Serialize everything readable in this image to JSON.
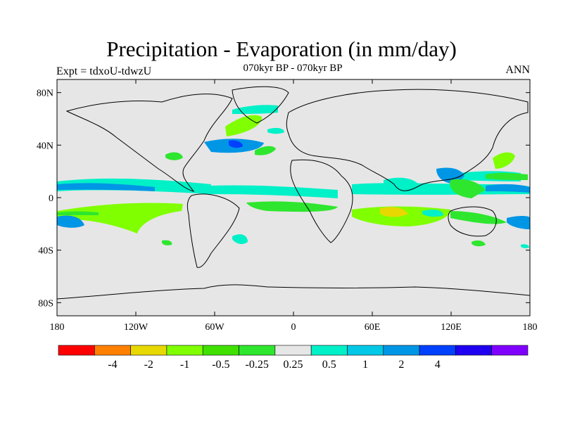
{
  "header": {
    "title": "Precipitation - Evaporation (in mm/day)",
    "subtitle": "070kyr BP - 070kyr BP",
    "left_label": "Expt = tdxoU-tdwzU",
    "right_label": "ANN"
  },
  "map": {
    "lat_ticks": [
      {
        "label": "80N",
        "value": 80
      },
      {
        "label": "40N",
        "value": 40
      },
      {
        "label": "0",
        "value": 0
      },
      {
        "label": "40S",
        "value": -40
      },
      {
        "label": "80S",
        "value": -80
      }
    ],
    "lon_ticks": [
      {
        "label": "180",
        "value": -180
      },
      {
        "label": "120W",
        "value": -120
      },
      {
        "label": "60W",
        "value": -60
      },
      {
        "label": "0",
        "value": 0
      },
      {
        "label": "60E",
        "value": 60
      },
      {
        "label": "120E",
        "value": 120
      },
      {
        "label": "180",
        "value": 180
      }
    ],
    "background_color": "#e6e6e6"
  },
  "colorbar": {
    "colors": [
      "#ff0000",
      "#ff8000",
      "#e6d800",
      "#80ff00",
      "#40e000",
      "#2ee62e",
      "#e6e6e6",
      "#00f0c8",
      "#00c8e6",
      "#0096e6",
      "#0040ff",
      "#2000f0",
      "#8000ff"
    ],
    "labels": [
      "-4",
      "-2",
      "-1",
      "-0.5",
      "-0.25",
      "0.25",
      "0.5",
      "1",
      "2",
      "4"
    ]
  }
}
